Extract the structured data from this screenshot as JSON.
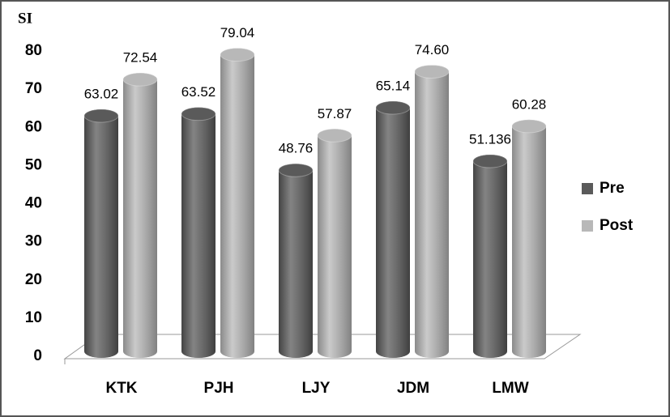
{
  "chart_data": {
    "type": "bar",
    "title": "SI",
    "categories": [
      "KTK",
      "PJH",
      "LJY",
      "JDM",
      "LMW"
    ],
    "series": [
      {
        "name": "Pre",
        "color": "#5a5a5a",
        "values": [
          63.02,
          63.52,
          48.76,
          65.14,
          51.136
        ]
      },
      {
        "name": "Post",
        "color": "#b8b8b8",
        "values": [
          72.54,
          79.04,
          57.87,
          74.6,
          60.28
        ],
        "value_labels": [
          "72.54",
          "79.04",
          "57.87",
          "74.60",
          "60.28"
        ]
      }
    ],
    "ylim": [
      0,
      80
    ],
    "yticks": [
      0,
      10,
      20,
      30,
      40,
      50,
      60,
      70,
      80
    ]
  }
}
